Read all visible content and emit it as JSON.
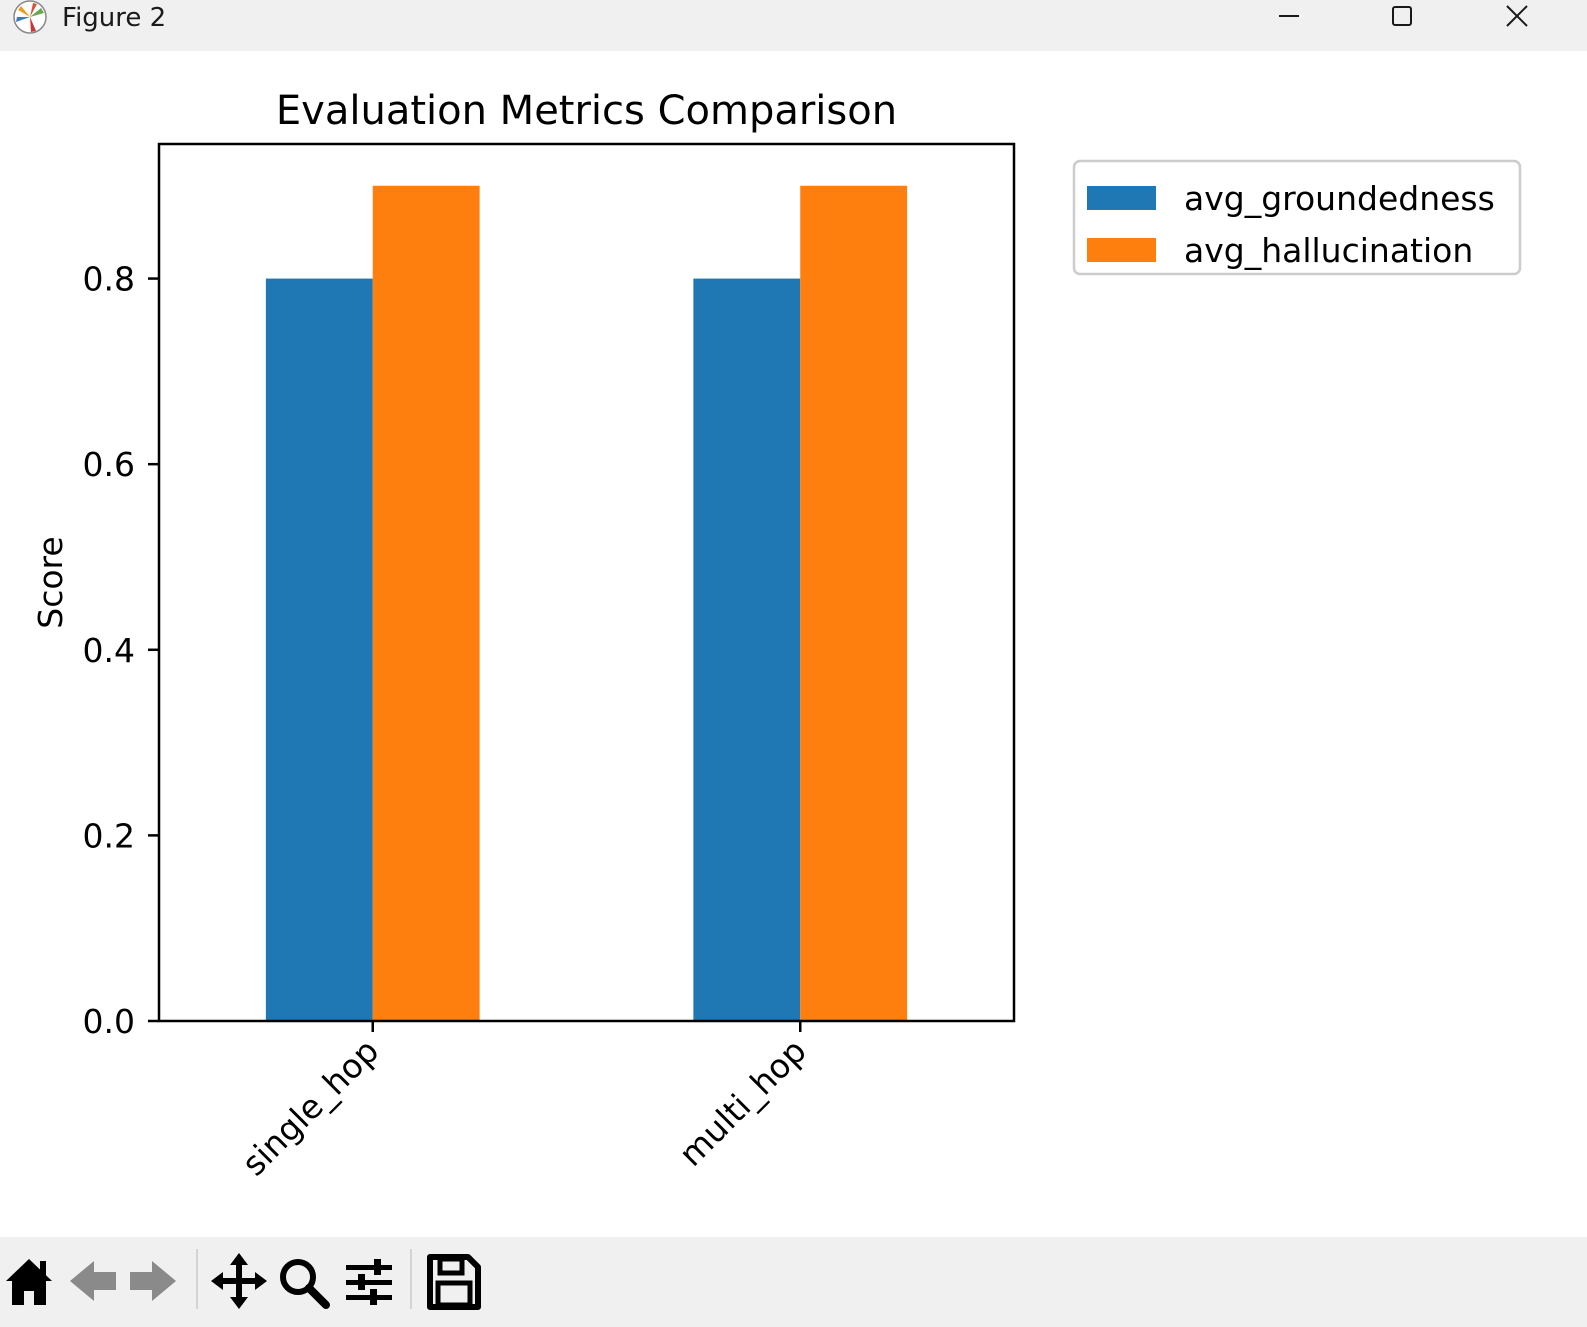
{
  "window": {
    "title": "Figure 2",
    "controls": [
      "minimize",
      "maximize",
      "close"
    ]
  },
  "chart_data": {
    "type": "bar",
    "title": "Evaluation Metrics Comparison",
    "xlabel": "",
    "ylabel": "Score",
    "categories": [
      "single_hop",
      "multi_hop"
    ],
    "series": [
      {
        "name": "avg_groundedness",
        "values": [
          0.8,
          0.8
        ],
        "color": "#1f77b4"
      },
      {
        "name": "avg_hallucination",
        "values": [
          0.9,
          0.9
        ],
        "color": "#ff7f0e"
      }
    ],
    "ylim": [
      0,
      0.945
    ],
    "yticks": [
      "0.0",
      "0.2",
      "0.4",
      "0.6",
      "0.8"
    ],
    "ytick_values": [
      0,
      0.2,
      0.4,
      0.6,
      0.8
    ],
    "xtick_rotation": 45,
    "grid": false,
    "legend_position": "outside upper right"
  },
  "toolbar": {
    "icons": [
      "home-icon",
      "back-arrow-icon",
      "forward-arrow-icon",
      "pan-icon",
      "zoom-icon",
      "configure-subplots-icon",
      "save-icon"
    ]
  }
}
